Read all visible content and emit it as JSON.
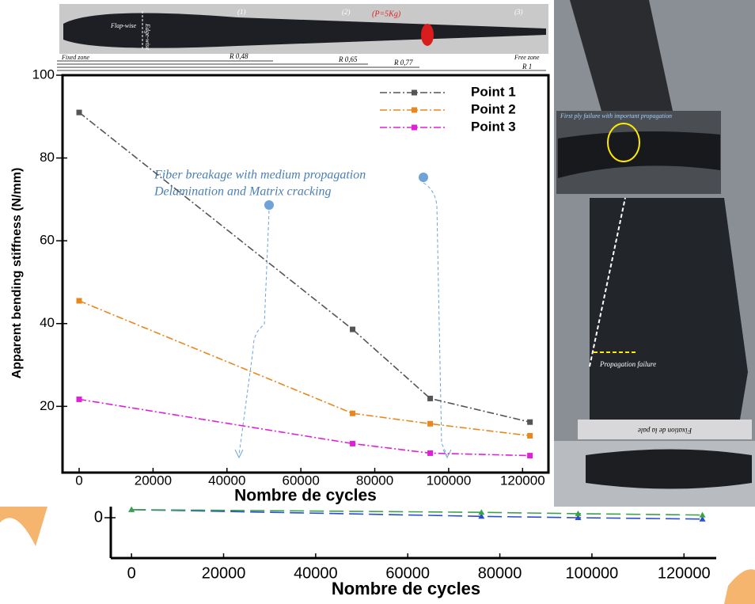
{
  "chart_data": [
    {
      "type": "line",
      "xlabel": "Nombre de cycles",
      "xlim": [
        -4500,
        127000
      ],
      "xticks": [
        0,
        20000,
        40000,
        60000,
        80000,
        100000,
        120000
      ],
      "ylim": [
        -1.5,
        1
      ],
      "yticks": [
        0
      ],
      "series": [
        {
          "color": "#2e4bd6",
          "x": [
            0,
            76000,
            97000,
            124000
          ],
          "values": [
            0.3,
            0.05,
            0.0,
            -0.05
          ]
        },
        {
          "color": "#3aa34a",
          "x": [
            0,
            76000,
            97000,
            124000
          ],
          "values": [
            0.3,
            0.2,
            0.15,
            0.1
          ]
        }
      ]
    },
    {
      "type": "line",
      "xlabel": "Nombre de cycles",
      "ylabel": "Apparent bending stiffness (N/mm)",
      "annotations": [
        "Fiber breakage with medium propagation",
        "Delamination and Matrix cracking"
      ],
      "xlim": [
        -4500,
        127000
      ],
      "xticks": [
        0,
        20000,
        40000,
        60000,
        80000,
        100000,
        120000
      ],
      "ylim": [
        4,
        100
      ],
      "yticks": [
        20,
        40,
        60,
        80,
        100
      ],
      "series": [
        {
          "name": "Point 1",
          "color": "#555555",
          "x": [
            0,
            74000,
            95000,
            122000
          ],
          "values": [
            91,
            38.6,
            21.9,
            16.2
          ]
        },
        {
          "name": "Point 2",
          "color": "#e8871e",
          "x": [
            0,
            74000,
            95000,
            122000
          ],
          "values": [
            45.5,
            18.3,
            15.8,
            12.9
          ]
        },
        {
          "name": "Point 3",
          "color": "#e020d8",
          "x": [
            0,
            74000,
            95000,
            122000
          ],
          "values": [
            21.7,
            11,
            8.7,
            8.1
          ]
        }
      ]
    }
  ],
  "blade_photo": {
    "load": "(P=5Kg)",
    "points": [
      "(1)",
      "(2)",
      "(3)"
    ],
    "flap": "Flap-wise",
    "edge": "Edge-wise",
    "fixed": "Fixed zone",
    "free": "Free zone",
    "radii": [
      "R 0,48",
      "R 0,65",
      "R 0,77",
      "R 1"
    ]
  },
  "side_photo": {
    "inset": "First ply failure with important propagation",
    "failure": "Propagation failure",
    "fixation": "Fixation de la pale"
  }
}
